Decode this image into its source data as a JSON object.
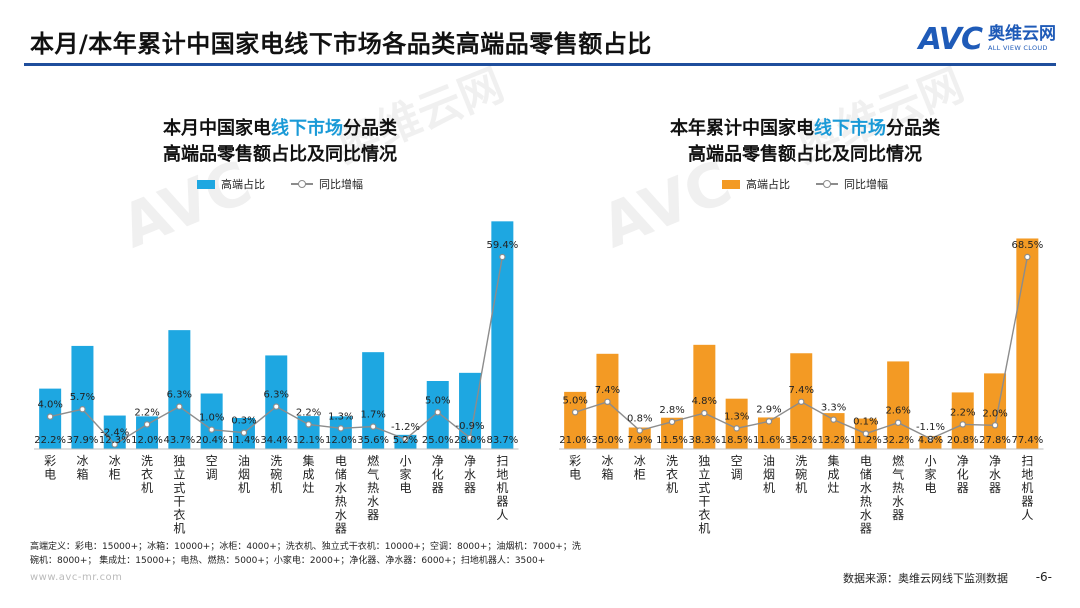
{
  "page": {
    "title": "本月/本年累计中国家电线下市场各品类高端品零售额占比",
    "brand_logo": "AVC",
    "brand_cn": "奥维云网",
    "brand_en": "ALL VIEW CLOUD",
    "watermark_cn": "奥维云网",
    "watermark_en": "ALL VIEW CLOUD",
    "footnote_line1": "高端定义：彩电：15000+；冰箱：10000+；冰柜：4000+；洗衣机、独立式干衣机：10000+；空调：8000+；油烟机：7000+；洗",
    "footnote_line2": "碗机：8000+；      集成灶：15000+；电热、燃热：5000+；小家电：2000+；净化器、净水器：6000+；扫地机器人：3500+",
    "site": "www.avc-mr.com",
    "source": "数据来源：奥维云网线下监测数据",
    "page_number": "-6-"
  },
  "colors": {
    "accent_blue": "#1a9ad7",
    "bar_blue": "#1ea7e1",
    "bar_orange": "#f39a24",
    "line_gray": "#8c8c8c",
    "header_rule": "#1f4e9c"
  },
  "chart_data": [
    {
      "type": "bar",
      "title_part1": "本月中国家电",
      "title_highlight": "线下市场",
      "title_part2": "分品类",
      "title_line2": "高端品零售额占比及同比情况",
      "categories": [
        "彩电",
        "冰箱",
        "冰柜",
        "洗衣机",
        "独立式干衣机",
        "空调",
        "油烟机",
        "洗碗机",
        "集成灶",
        "电储水热水器",
        "燃气热水器",
        "小家电",
        "净化器",
        "净水器",
        "扫地机器人"
      ],
      "series": [
        {
          "name": "高端占比",
          "kind": "bar",
          "values": [
            22.2,
            37.9,
            12.3,
            12.0,
            43.7,
            20.4,
            11.4,
            34.4,
            12.1,
            12.0,
            35.6,
            5.2,
            25.0,
            28.0,
            83.7
          ],
          "labels": [
            "22.2%",
            "37.9%",
            "12.3%",
            "12.0%",
            "43.7%",
            "20.4%",
            "11.4%",
            "34.4%",
            "12.1%",
            "12.0%",
            "35.6%",
            "5.2%",
            "25.0%",
            "28.0%",
            "83.7%"
          ]
        },
        {
          "name": "同比增幅",
          "kind": "line",
          "values": [
            4.0,
            5.7,
            -2.4,
            2.2,
            6.3,
            1.0,
            0.3,
            6.3,
            2.2,
            1.3,
            1.7,
            -1.2,
            5.0,
            -0.9,
            59.4
          ],
          "labels": [
            "4.0%",
            "5.7%",
            "-2.4%",
            "2.2%",
            "6.3%",
            "1.0%",
            "0.3%",
            "6.3%",
            "2.2%",
            "1.3%",
            "1.7%",
            "-1.2%",
            "5.0%",
            "-0.9%",
            "59.4%"
          ]
        }
      ]
    },
    {
      "type": "bar",
      "title_part1": "本年累计中国家电",
      "title_highlight": "线下市场",
      "title_part2": "分品类",
      "title_line2": "高端品零售额占比及同比情况",
      "categories": [
        "彩电",
        "冰箱",
        "冰柜",
        "洗衣机",
        "独立式干衣机",
        "空调",
        "油烟机",
        "洗碗机",
        "集成灶",
        "电储水热水器",
        "燃气热水器",
        "小家电",
        "净化器",
        "净水器",
        "扫地机器人"
      ],
      "series": [
        {
          "name": "高端占比",
          "kind": "bar",
          "values": [
            21.0,
            35.0,
            7.9,
            11.5,
            38.3,
            18.5,
            11.6,
            35.2,
            13.2,
            11.2,
            32.2,
            4.8,
            20.8,
            27.8,
            77.4
          ],
          "labels": [
            "21.0%",
            "35.0%",
            "7.9%",
            "11.5%",
            "38.3%",
            "18.5%",
            "11.6%",
            "35.2%",
            "13.2%",
            "11.2%",
            "32.2%",
            "4.8%",
            "20.8%",
            "27.8%",
            "77.4%"
          ]
        },
        {
          "name": "同比增幅",
          "kind": "line",
          "values": [
            5.0,
            7.4,
            0.8,
            2.8,
            4.8,
            1.3,
            2.9,
            7.4,
            3.3,
            0.1,
            2.6,
            -1.1,
            2.2,
            2.0,
            68.5
          ],
          "labels": [
            "5.0%",
            "7.4%",
            "0.8%",
            "2.8%",
            "4.8%",
            "1.3%",
            "2.9%",
            "7.4%",
            "3.3%",
            "0.1%",
            "2.6%",
            "-1.1%",
            "2.2%",
            "2.0%",
            "68.5%"
          ]
        }
      ]
    }
  ]
}
